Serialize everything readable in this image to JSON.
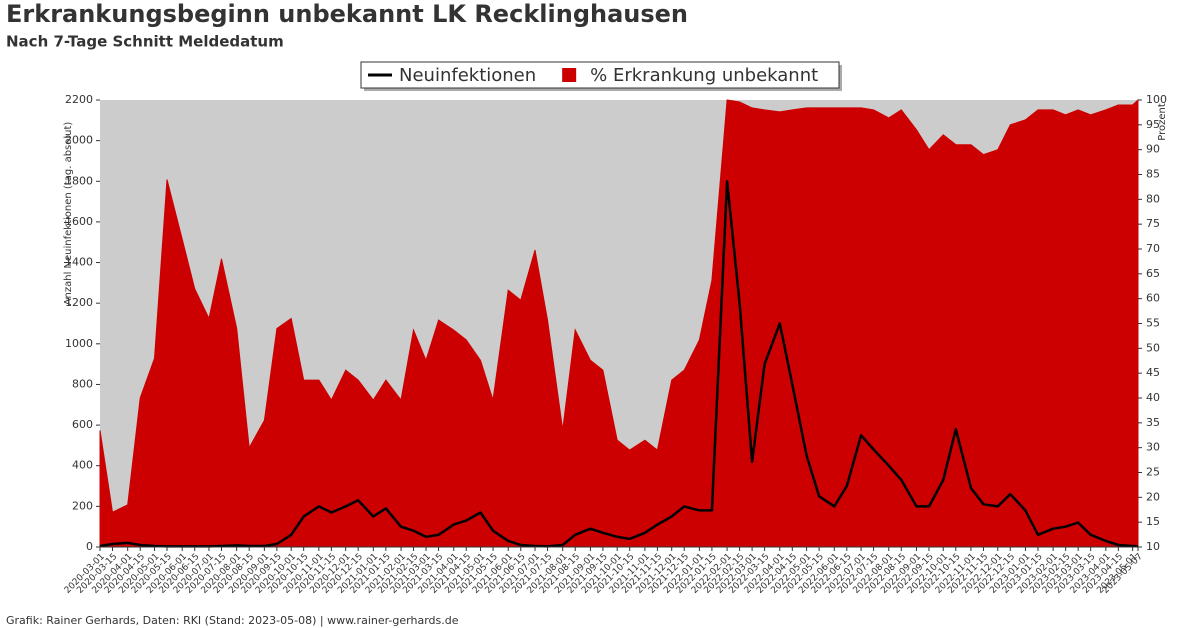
{
  "chart_data": {
    "type": "line-area",
    "title": "Erkrankungsbeginn unbekannt LK Recklinghausen",
    "subtitle": "Nach 7-Tage Schnitt Meldedatum",
    "ylabel": "Anzahl Neuinfektionen (tag. absolut)",
    "y2label": "Prozent",
    "footer": "Grafik: Rainer Gerhards, Daten: RKI (Stand: 2023-05-08) | www.rainer-gerhards.de",
    "x": [
      "2020-03-01",
      "2020-03-15",
      "2020-04-01",
      "2020-04-15",
      "2020-05-01",
      "2020-05-15",
      "2020-06-01",
      "2020-06-15",
      "2020-07-01",
      "2020-07-15",
      "2020-08-01",
      "2020-08-15",
      "2020-09-01",
      "2020-09-15",
      "2020-10-01",
      "2020-10-15",
      "2020-11-01",
      "2020-11-15",
      "2020-12-01",
      "2020-12-15",
      "2021-01-01",
      "2021-01-15",
      "2021-02-01",
      "2021-02-15",
      "2021-03-01",
      "2021-03-15",
      "2021-04-01",
      "2021-04-15",
      "2021-05-01",
      "2021-05-15",
      "2021-06-01",
      "2021-06-15",
      "2021-07-01",
      "2021-07-15",
      "2021-08-01",
      "2021-08-15",
      "2021-09-01",
      "2021-09-15",
      "2021-10-01",
      "2021-10-15",
      "2021-11-01",
      "2021-11-15",
      "2021-12-01",
      "2021-12-15",
      "2022-01-01",
      "2022-01-15",
      "2022-02-01",
      "2022-02-15",
      "2022-03-01",
      "2022-03-15",
      "2022-04-01",
      "2022-04-15",
      "2022-05-01",
      "2022-05-15",
      "2022-06-01",
      "2022-06-15",
      "2022-07-01",
      "2022-07-15",
      "2022-08-01",
      "2022-08-15",
      "2022-09-01",
      "2022-09-15",
      "2022-10-01",
      "2022-10-15",
      "2022-11-01",
      "2022-11-15",
      "2022-12-01",
      "2022-12-15",
      "2023-01-01",
      "2023-01-15",
      "2023-02-01",
      "2023-02-15",
      "2023-03-01",
      "2023-03-15",
      "2023-04-01",
      "2023-04-15",
      "2023-05-01",
      "2023-05-07"
    ],
    "series": [
      {
        "name": "Neuinfektionen",
        "color": "#000000",
        "axis": "y",
        "values": [
          5,
          15,
          20,
          10,
          5,
          3,
          3,
          3,
          3,
          5,
          8,
          5,
          5,
          15,
          60,
          150,
          200,
          170,
          200,
          230,
          150,
          190,
          100,
          80,
          50,
          60,
          110,
          130,
          170,
          80,
          30,
          10,
          5,
          3,
          10,
          60,
          90,
          70,
          50,
          40,
          70,
          110,
          150,
          200,
          180,
          180,
          1800,
          1200,
          420,
          900,
          1100,
          800,
          450,
          250,
          200,
          300,
          550,
          480,
          400,
          330,
          200,
          200,
          330,
          580,
          290,
          210,
          200,
          260,
          180,
          60,
          90,
          100,
          120,
          60,
          30,
          10,
          5,
          3
        ]
      },
      {
        "name": "% Erkrankung unbekannt",
        "color": "#cc0000",
        "axis": "y2",
        "values": [
          33.5,
          17,
          18.5,
          40,
          48,
          84,
          72,
          62,
          56,
          68,
          54,
          30,
          35.5,
          54,
          56,
          43.6,
          43.6,
          39.6,
          45.6,
          43.6,
          39.6,
          43.6,
          39.6,
          53.7,
          47.6,
          55.7,
          53.7,
          51.7,
          47.6,
          39.6,
          61.7,
          59.7,
          69.8,
          55.7,
          33.6,
          53.7,
          47.6,
          45.6,
          31.5,
          29.5,
          31.5,
          29.5,
          43.6,
          45.6,
          51.7,
          63.7,
          100,
          99.6,
          98.4,
          98,
          97.6,
          98,
          98.4,
          98.4,
          98.4,
          98.4,
          98.4,
          98,
          96.4,
          98,
          94,
          90,
          93,
          91,
          91,
          89,
          90,
          95,
          96,
          98,
          98,
          97,
          98,
          97,
          98,
          99,
          99,
          100
        ]
      }
    ],
    "ylim": [
      0,
      2200
    ],
    "yticks": [
      0,
      200,
      400,
      600,
      800,
      1000,
      1200,
      1400,
      1600,
      1800,
      2000,
      2200
    ],
    "y2lim": [
      10,
      100
    ],
    "y2ticks": [
      10,
      15,
      20,
      25,
      30,
      35,
      40,
      45,
      50,
      55,
      60,
      65,
      70,
      75,
      80,
      85,
      90,
      95,
      100
    ],
    "plot_background": "#cccccc",
    "legend": "top"
  }
}
